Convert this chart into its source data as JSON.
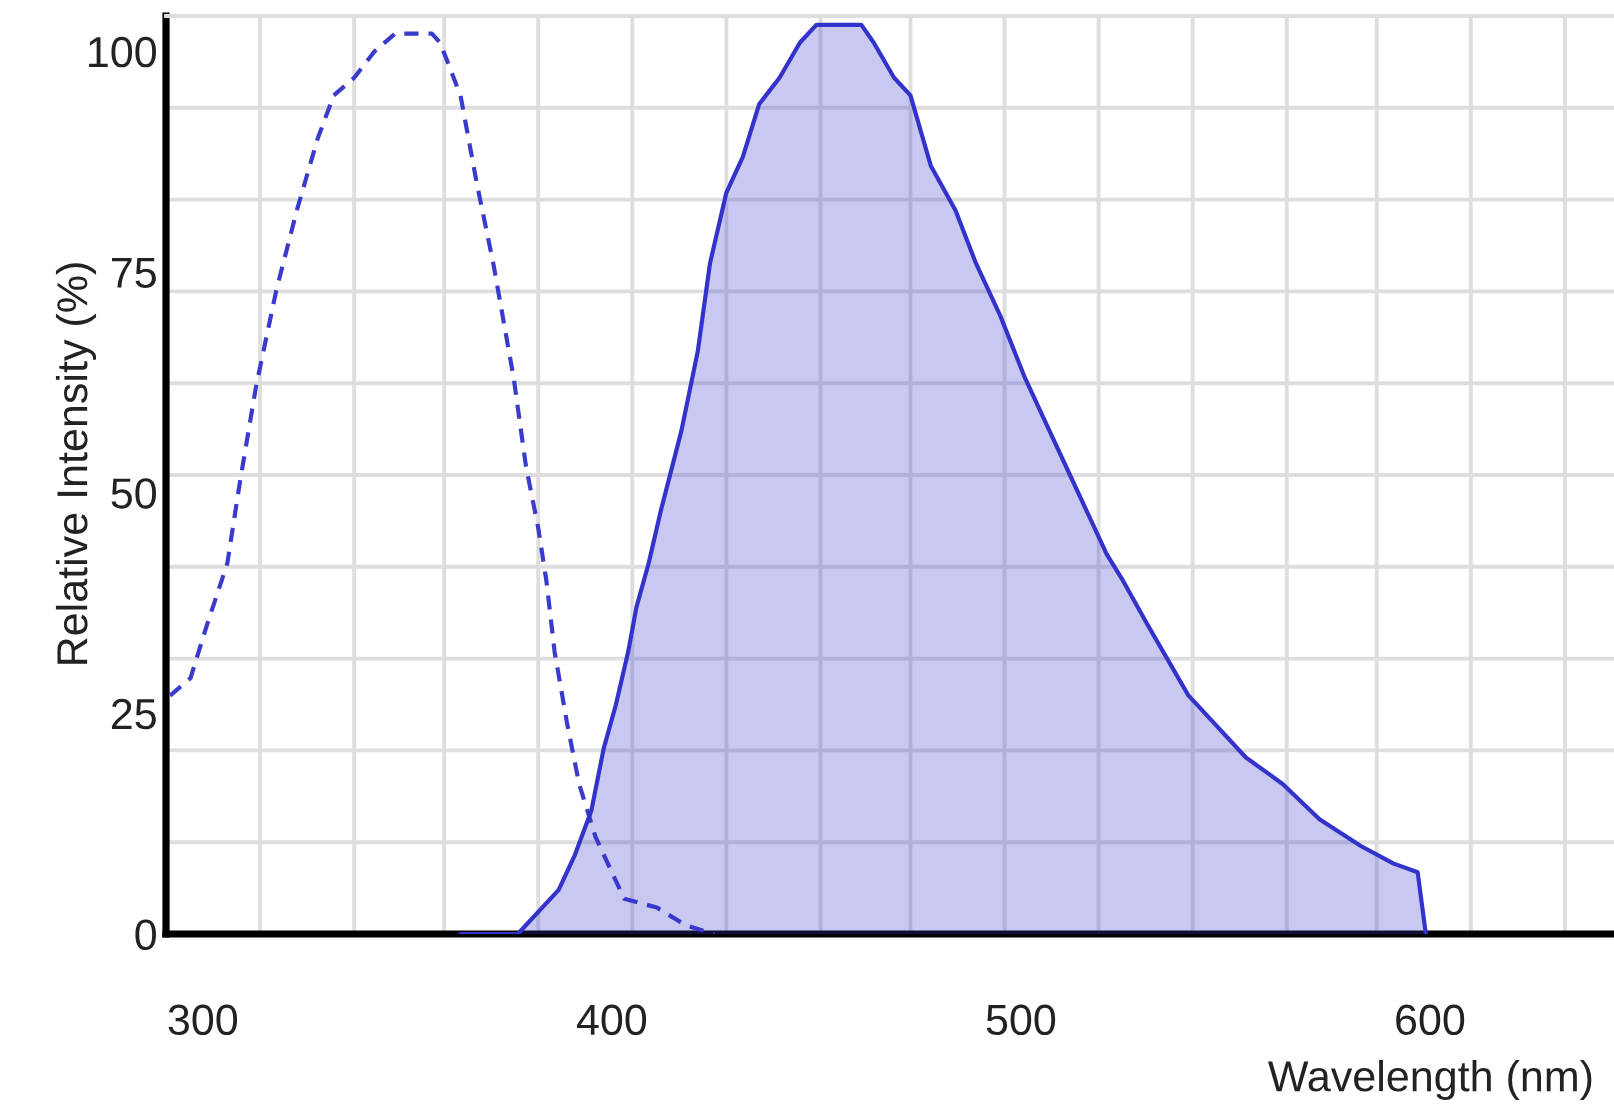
{
  "chart_data": {
    "type": "line",
    "xlabel": "Wavelength (nm)",
    "ylabel": "Relative Intensity (%)",
    "xlim": [
      291,
      645
    ],
    "xticks": [
      300,
      400,
      500,
      600,
      {
        "value": 314,
        "label": null
      },
      {
        "value": 337,
        "label": null
      },
      {
        "value": 359,
        "label": null
      },
      {
        "value": 382,
        "label": null
      },
      {
        "value": 405,
        "label": null
      },
      {
        "value": 428,
        "label": null
      },
      {
        "value": 451,
        "label": null
      },
      {
        "value": 473,
        "label": null
      },
      {
        "value": 496,
        "label": null
      },
      {
        "value": 519,
        "label": null
      },
      {
        "value": 542,
        "label": null
      },
      {
        "value": 565,
        "label": null
      },
      {
        "value": 587,
        "label": null
      },
      {
        "value": 610,
        "label": null
      },
      {
        "value": 633,
        "label": null
      }
    ],
    "ylim": [
      0,
      104
    ],
    "yticks": [
      0,
      25,
      50,
      75,
      100,
      {
        "value": 10.4,
        "label": null
      },
      {
        "value": 20.8,
        "label": null
      },
      {
        "value": 31.2,
        "label": null
      },
      {
        "value": 41.6,
        "label": null
      },
      {
        "value": 52,
        "label": null
      },
      {
        "value": 62.4,
        "label": null
      },
      {
        "value": 72.8,
        "label": null
      },
      {
        "value": 83.2,
        "label": null
      },
      {
        "value": 93.6,
        "label": null
      }
    ],
    "grid": true,
    "line_style": "solid",
    "series": [
      {
        "line_style": "dashed",
        "color": "#3a3acc",
        "x": [
          292,
          297,
          301,
          306,
          309,
          313,
          318,
          323,
          328,
          332,
          337,
          342,
          347,
          352,
          356,
          358,
          363,
          367,
          371,
          376,
          379,
          382,
          384,
          386,
          389,
          392,
          396,
          399,
          403,
          411,
          418,
          425
        ],
        "values": [
          27,
          29,
          35,
          42,
          51,
          62,
          73,
          82,
          90,
          95,
          97,
          100,
          102,
          102,
          102,
          101,
          95,
          85,
          76,
          63,
          53,
          46,
          40,
          32,
          24,
          17,
          11,
          8,
          4,
          3,
          1,
          0
        ]
      },
      {
        "type": "area",
        "color": "#3333cc",
        "x": [
          363,
          377,
          387,
          391,
          395,
          398,
          401,
          404,
          406,
          409,
          412,
          417,
          421,
          424,
          428,
          432,
          436,
          441,
          446,
          450,
          454,
          457,
          461,
          464,
          469,
          473,
          478,
          484,
          489,
          495,
          501,
          506,
          512,
          518,
          521,
          525,
          531,
          536,
          541,
          547,
          555,
          564,
          573,
          583,
          591,
          597,
          599
        ],
        "values": [
          0,
          0,
          5,
          9,
          14,
          21,
          26,
          32,
          37,
          42,
          48,
          57,
          66,
          76,
          84,
          88,
          94,
          97,
          101,
          103,
          103,
          103,
          103,
          101,
          97,
          95,
          87,
          82,
          76,
          70,
          63,
          58,
          52,
          46,
          43,
          40,
          35,
          31,
          27,
          24,
          20,
          17,
          13,
          10,
          8,
          7,
          0
        ]
      }
    ]
  }
}
